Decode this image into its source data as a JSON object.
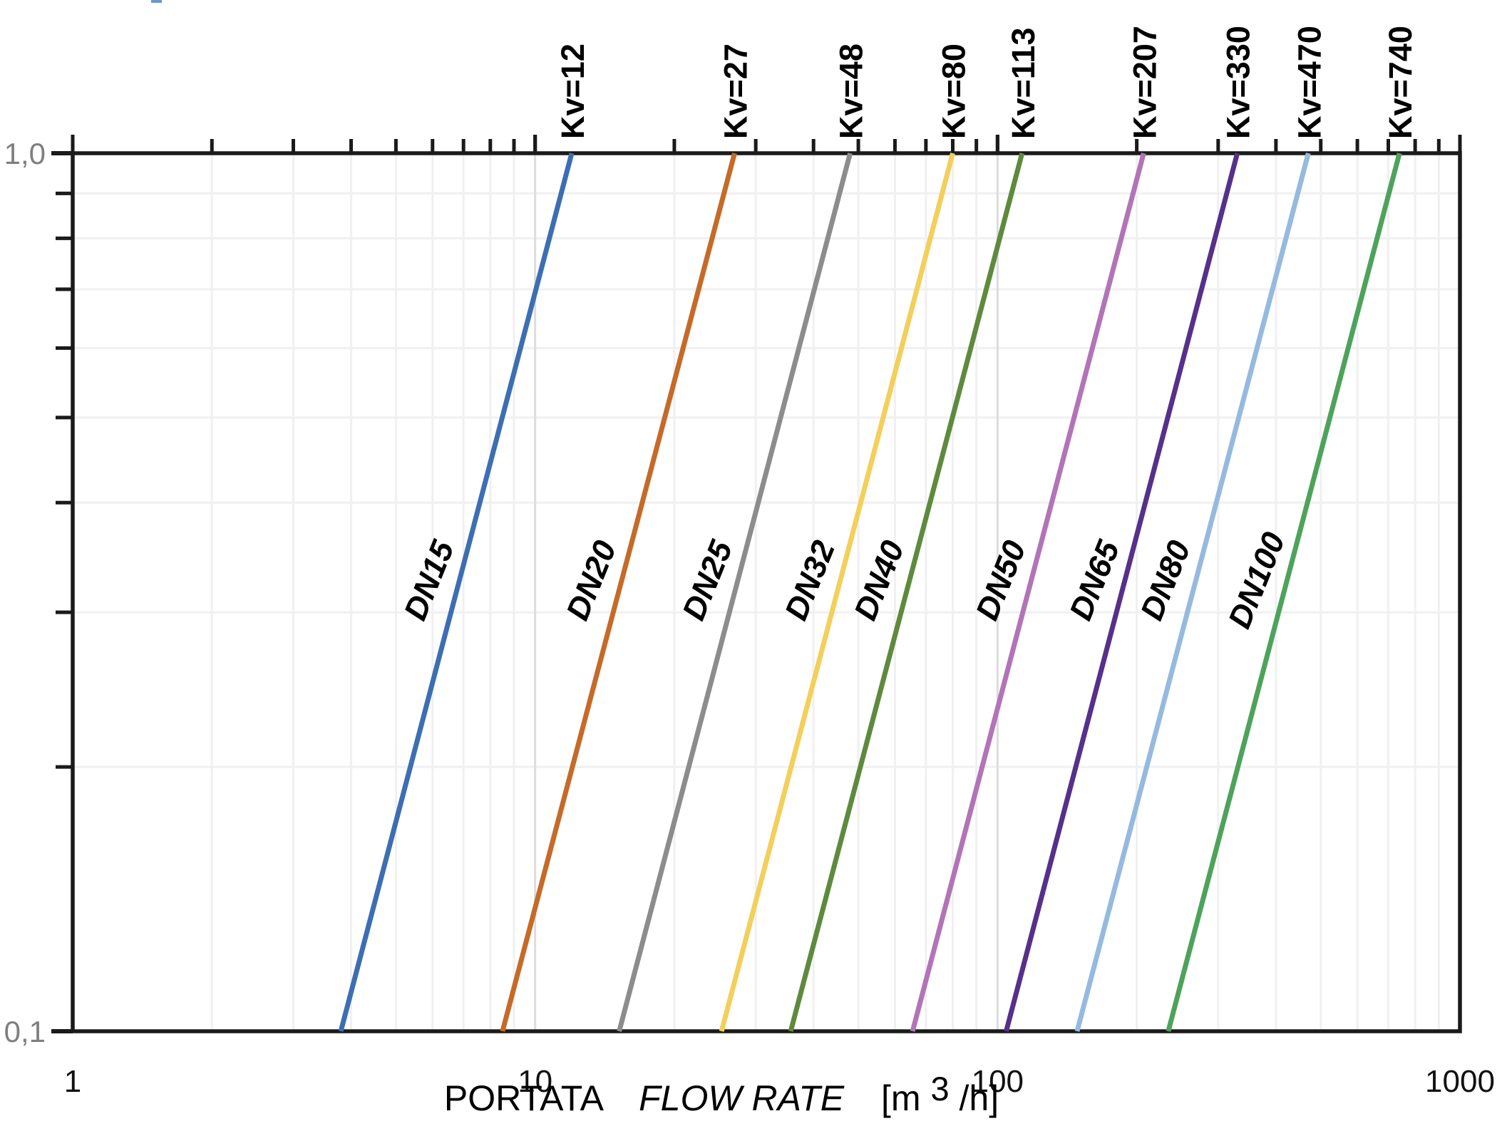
{
  "artifact": {
    "color": "#7096C8"
  },
  "chart_data": {
    "type": "line",
    "title": "",
    "description": "Valve sizing diagram: pressure drop (bar) vs flow rate, log-log, one line per nominal diameter DN with its Kv value",
    "x_axis": {
      "label_portata": "PORTATA",
      "label_flow_rate": "FLOW RATE",
      "label_unit_pre": "[m",
      "label_unit_sup": "3",
      "label_unit_post": "/h]",
      "scale": "log",
      "range": [
        1,
        1000
      ],
      "ticks": [
        {
          "v": 1,
          "label": "1"
        },
        {
          "v": 10,
          "label": "10"
        },
        {
          "v": 100,
          "label": "100"
        },
        {
          "v": 1000,
          "label": "1000"
        }
      ],
      "minor_gridlines": [
        2,
        3,
        4,
        5,
        6,
        7,
        8,
        9,
        20,
        30,
        40,
        50,
        60,
        70,
        80,
        90,
        200,
        300,
        400,
        500,
        600,
        700,
        800,
        900
      ],
      "decade_gridlines": [
        10,
        100
      ]
    },
    "y_axis": {
      "scale": "log",
      "range": [
        0.1,
        1.0
      ],
      "ticks": [
        {
          "v": 1.0,
          "label": "1,0"
        },
        {
          "v": 0.1,
          "label": "0,1"
        }
      ],
      "minor_gridlines": [
        0.2,
        0.3,
        0.4,
        0.5,
        0.6,
        0.7,
        0.8,
        0.9
      ]
    },
    "grid": {
      "minor_color": "#F0F0F0",
      "decade_color": "#DCDCDC",
      "on": true
    },
    "axis_color": "#1a1a1a",
    "series": [
      {
        "dn": "DN15",
        "kv": 12,
        "kv_label": "Kv=12",
        "color": "#3D6EB3",
        "points": [
          {
            "flow": 3.8,
            "dp": 0.1
          },
          {
            "flow": 12,
            "dp": 1.0
          }
        ]
      },
      {
        "dn": "DN20",
        "kv": 27,
        "kv_label": "Kv=27",
        "color": "#C66A28",
        "points": [
          {
            "flow": 8.5,
            "dp": 0.1
          },
          {
            "flow": 27,
            "dp": 1.0
          }
        ]
      },
      {
        "dn": "DN25",
        "kv": 48,
        "kv_label": "Kv=48",
        "color": "#8C8C8C",
        "points": [
          {
            "flow": 15.2,
            "dp": 0.1
          },
          {
            "flow": 48,
            "dp": 1.0
          }
        ]
      },
      {
        "dn": "DN32",
        "kv": 80,
        "kv_label": "Kv=80",
        "color": "#F3CF5B",
        "points": [
          {
            "flow": 25.3,
            "dp": 0.1
          },
          {
            "flow": 80,
            "dp": 1.0
          }
        ]
      },
      {
        "dn": "DN40",
        "kv": 113,
        "kv_label": "Kv=113",
        "color": "#5F8A3D",
        "points": [
          {
            "flow": 35.7,
            "dp": 0.1
          },
          {
            "flow": 113,
            "dp": 1.0
          }
        ]
      },
      {
        "dn": "DN50",
        "kv": 207,
        "kv_label": "Kv=207",
        "color": "#B273B8",
        "points": [
          {
            "flow": 65.5,
            "dp": 0.1
          },
          {
            "flow": 207,
            "dp": 1.0
          }
        ]
      },
      {
        "dn": "DN65",
        "kv": 330,
        "kv_label": "Kv=330",
        "color": "#56308A",
        "points": [
          {
            "flow": 104.4,
            "dp": 0.1
          },
          {
            "flow": 330,
            "dp": 1.0
          }
        ]
      },
      {
        "dn": "DN80",
        "kv": 470,
        "kv_label": "Kv=470",
        "color": "#95BAE0",
        "points": [
          {
            "flow": 148.6,
            "dp": 0.1
          },
          {
            "flow": 470,
            "dp": 1.0
          }
        ]
      },
      {
        "dn": "DN100",
        "kv": 740,
        "kv_label": "Kv=740",
        "color": "#4DA35A",
        "points": [
          {
            "flow": 234.0,
            "dp": 0.1
          },
          {
            "flow": 740,
            "dp": 1.0
          }
        ]
      }
    ]
  }
}
